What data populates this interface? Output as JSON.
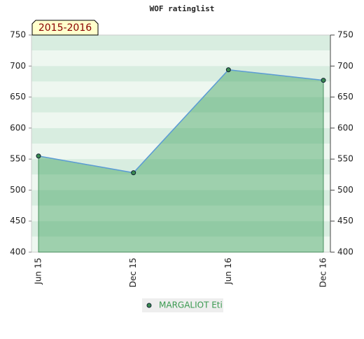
{
  "chart_data": {
    "type": "line",
    "title": "WOF ratinglist",
    "annotation": "2015-2016",
    "categories": [
      "Jun 15",
      "Dec 15",
      "Jun 16",
      "Dec 16"
    ],
    "series": [
      {
        "name": "MARGALIOT Eti",
        "color": "#5b9bd5",
        "values": [
          555,
          528,
          694,
          677
        ]
      }
    ],
    "ylim": [
      400,
      750
    ],
    "yticks": [
      400,
      450,
      500,
      550,
      600,
      650,
      700,
      750
    ],
    "y2lim": [
      400,
      750
    ],
    "y2ticks": [
      400,
      450,
      500,
      550,
      600,
      650,
      700,
      750
    ]
  }
}
